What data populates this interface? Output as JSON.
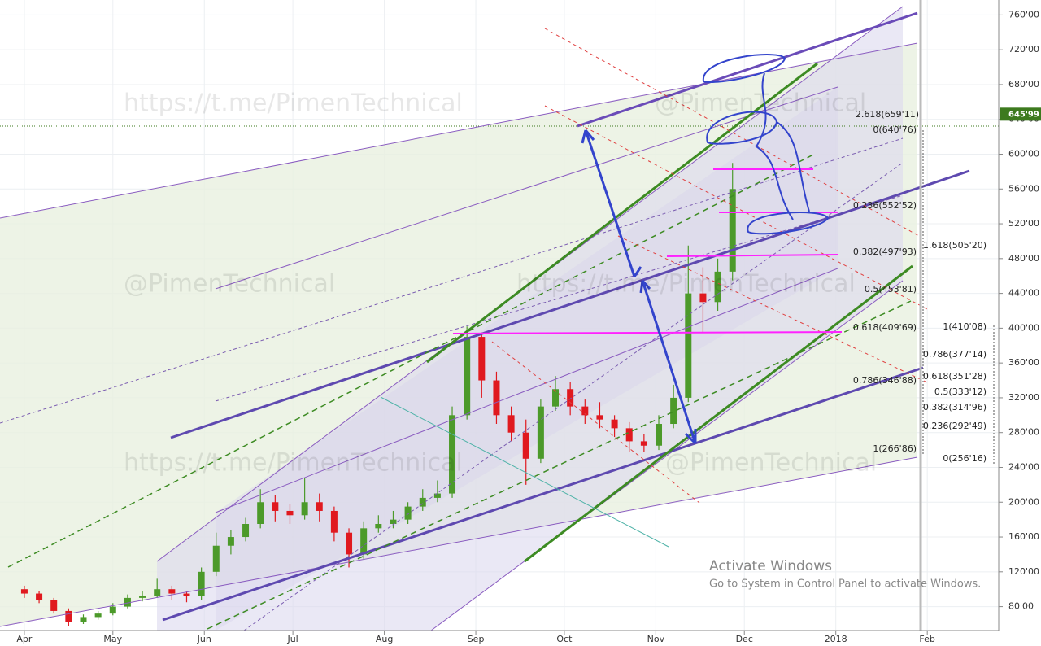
{
  "chart_data": {
    "type": "candlestick",
    "categories": [
      null,
      null,
      null,
      null,
      null,
      null,
      null,
      null,
      null,
      null,
      null,
      null,
      null,
      null,
      null,
      null,
      null,
      null,
      null,
      null,
      null,
      null,
      null,
      null,
      null,
      null,
      null,
      null,
      null,
      null,
      null,
      null,
      null,
      null,
      null,
      null,
      null,
      null,
      null,
      null,
      null,
      null,
      null,
      null,
      null,
      null,
      null,
      null,
      null
    ],
    "open": [
      100,
      95,
      88,
      75,
      62,
      68,
      72,
      80,
      90,
      92,
      100,
      95,
      92,
      120,
      150,
      160,
      175,
      200,
      190,
      185,
      200,
      190,
      165,
      140,
      170,
      175,
      180,
      195,
      205,
      210,
      300,
      390,
      340,
      300,
      280,
      250,
      310,
      330,
      310,
      300,
      295,
      285,
      270,
      265,
      290,
      320,
      440,
      430,
      465
    ],
    "high": [
      104,
      98,
      90,
      78,
      71,
      75,
      84,
      94,
      98,
      112,
      104,
      98,
      125,
      165,
      168,
      182,
      215,
      208,
      198,
      228,
      210,
      195,
      170,
      178,
      185,
      190,
      200,
      215,
      225,
      310,
      402,
      395,
      350,
      310,
      295,
      318,
      345,
      338,
      318,
      315,
      300,
      292,
      278,
      300,
      335,
      495,
      470,
      480,
      590
    ],
    "low": [
      90,
      84,
      72,
      58,
      60,
      65,
      70,
      78,
      86,
      90,
      88,
      85,
      88,
      115,
      140,
      155,
      170,
      178,
      175,
      180,
      178,
      155,
      125,
      135,
      165,
      170,
      175,
      190,
      200,
      205,
      295,
      320,
      290,
      270,
      220,
      245,
      305,
      300,
      290,
      285,
      275,
      258,
      258,
      260,
      285,
      315,
      395,
      420,
      455
    ],
    "close": [
      95,
      88,
      75,
      62,
      68,
      72,
      80,
      90,
      92,
      100,
      95,
      92,
      120,
      150,
      160,
      175,
      200,
      190,
      185,
      200,
      190,
      165,
      140,
      170,
      175,
      180,
      195,
      205,
      210,
      300,
      390,
      340,
      300,
      280,
      250,
      310,
      330,
      310,
      300,
      295,
      285,
      270,
      265,
      290,
      320,
      440,
      430,
      465,
      560
    ],
    "up_color": "#4c9a2a",
    "down_color": "#e0191f",
    "xlim": [
      -1.65,
      65.6
    ],
    "xticks": [
      {
        "value": 0,
        "label": "Apr"
      },
      {
        "value": 6,
        "label": "May"
      },
      {
        "value": 12.2,
        "label": "Jun"
      },
      {
        "value": 18.2,
        "label": "Jul"
      },
      {
        "value": 24.4,
        "label": "Aug"
      },
      {
        "value": 30.6,
        "label": "Sep"
      },
      {
        "value": 36.6,
        "label": "Oct"
      },
      {
        "value": 42.8,
        "label": "Nov"
      },
      {
        "value": 48.8,
        "label": "Dec"
      },
      {
        "value": 55,
        "label": "2018"
      },
      {
        "value": 61.2,
        "label": "Feb"
      }
    ],
    "ylim": [
      52.5,
      777.2
    ],
    "yticks": [
      {
        "value": 760,
        "label": "760'00"
      },
      {
        "value": 720,
        "label": "720'00"
      },
      {
        "value": 680,
        "label": "680'00"
      },
      {
        "value": 640,
        "label": "640'00"
      },
      {
        "value": 600,
        "label": "600'00"
      },
      {
        "value": 560,
        "label": "560'00"
      },
      {
        "value": 520,
        "label": "520'00"
      },
      {
        "value": 480,
        "label": "480'00"
      },
      {
        "value": 440,
        "label": "440'00"
      },
      {
        "value": 400,
        "label": "400'00"
      },
      {
        "value": 360,
        "label": "360'00"
      },
      {
        "value": 320,
        "label": "320'00"
      },
      {
        "value": 280,
        "label": "280'00"
      },
      {
        "value": 240,
        "label": "240'00"
      },
      {
        "value": 200,
        "label": "200'00"
      },
      {
        "value": 160,
        "label": "160'00"
      },
      {
        "value": 120,
        "label": "120'00"
      },
      {
        "value": 80,
        "label": "80'00"
      }
    ],
    "grid": true,
    "last_price": {
      "value": 645.99,
      "label": "645'99"
    },
    "annotations": [
      "2.618(659'11)",
      "0(640'76)",
      "0.236(552'52)",
      "1.618(505'20)",
      "0.382(497'93)",
      "0.5(453'81)",
      "0.618(409'69)",
      "1(410'08)",
      "0.786(377'14)",
      "0.786(346'88)",
      "0.618(351'28)",
      "0.5(333'12)",
      "0.382(314'96)",
      "0.236(292'49)",
      "1(266'86)",
      "0(256'16)"
    ],
    "watermarks": [
      "https://t.me/PimenTechnical",
      "@PimenTechnical",
      "@PimenTechnical",
      "https://t.me/PimenTechnical",
      "https://t.me/PimenTechnical",
      "@PimenTechnical"
    ],
    "overlay": [
      "Activate Windows",
      "Go to System in Control Panel to activate Windows."
    ]
  }
}
